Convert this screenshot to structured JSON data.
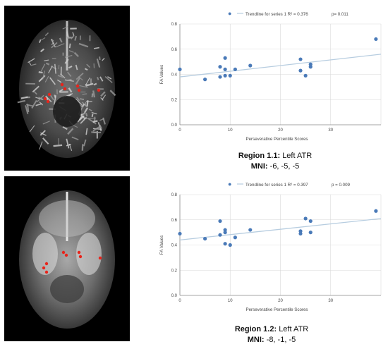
{
  "panels": [
    {
      "region_label": "Region 1.1:",
      "region_value": "Left ATR",
      "mni_label": "MNI:",
      "mni_value": "-6, -5, -5",
      "legend_marker": "●",
      "legend_text": "Trendline for series 1 R² = 0.376",
      "p_text": "p= 0.011",
      "brain_style": "skeleton"
    },
    {
      "region_label": "Region 1.2:",
      "region_value": "Left ATR",
      "mni_label": "MNI:",
      "mni_value": "-8, -1, -5",
      "legend_marker": "●",
      "legend_text": "Trendline for series 1 R² = 0.397",
      "p_text": "p = 0.009",
      "brain_style": "smooth"
    }
  ],
  "colors": {
    "point": "#4a7ab8",
    "trend": "#b7cde0",
    "grid": "#d9d9d9",
    "axis": "#8c8c8c",
    "highlight": "#e8241b"
  },
  "chart_data": [
    {
      "type": "scatter",
      "xlabel": "Perseverative Percentile Scores",
      "ylabel": "FA Values",
      "xlim": [
        0,
        40
      ],
      "ylim": [
        0,
        0.8
      ],
      "xticks": [
        "0",
        "10",
        "20",
        "30"
      ],
      "yticks": [
        "0.0",
        "0.2",
        "0.4",
        "0.6",
        "0.8"
      ],
      "trendline": {
        "x": [
          0,
          40
        ],
        "y": [
          0.38,
          0.56
        ]
      },
      "points": [
        {
          "x": 0,
          "y": 0.44
        },
        {
          "x": 5,
          "y": 0.36
        },
        {
          "x": 8,
          "y": 0.38
        },
        {
          "x": 8,
          "y": 0.46
        },
        {
          "x": 9,
          "y": 0.39
        },
        {
          "x": 9,
          "y": 0.44
        },
        {
          "x": 9,
          "y": 0.53
        },
        {
          "x": 10,
          "y": 0.39
        },
        {
          "x": 11,
          "y": 0.44
        },
        {
          "x": 14,
          "y": 0.47
        },
        {
          "x": 24,
          "y": 0.43
        },
        {
          "x": 24,
          "y": 0.52
        },
        {
          "x": 25,
          "y": 0.39
        },
        {
          "x": 26,
          "y": 0.46
        },
        {
          "x": 26,
          "y": 0.48
        },
        {
          "x": 39,
          "y": 0.68
        }
      ]
    },
    {
      "type": "scatter",
      "xlabel": "Perseverative Percentile Scores",
      "ylabel": "FA Values",
      "xlim": [
        0,
        40
      ],
      "ylim": [
        0,
        0.8
      ],
      "xticks": [
        "0",
        "10",
        "20",
        "30"
      ],
      "yticks": [
        "0.0",
        "0.2",
        "0.4",
        "0.6",
        "0.8"
      ],
      "trendline": {
        "x": [
          0,
          40
        ],
        "y": [
          0.44,
          0.61
        ]
      },
      "points": [
        {
          "x": 0,
          "y": 0.49
        },
        {
          "x": 5,
          "y": 0.45
        },
        {
          "x": 8,
          "y": 0.48
        },
        {
          "x": 8,
          "y": 0.59
        },
        {
          "x": 9,
          "y": 0.41
        },
        {
          "x": 9,
          "y": 0.5
        },
        {
          "x": 9,
          "y": 0.52
        },
        {
          "x": 10,
          "y": 0.4
        },
        {
          "x": 11,
          "y": 0.46
        },
        {
          "x": 14,
          "y": 0.52
        },
        {
          "x": 24,
          "y": 0.49
        },
        {
          "x": 24,
          "y": 0.51
        },
        {
          "x": 25,
          "y": 0.61
        },
        {
          "x": 26,
          "y": 0.5
        },
        {
          "x": 26,
          "y": 0.59
        },
        {
          "x": 39,
          "y": 0.67
        }
      ]
    }
  ]
}
